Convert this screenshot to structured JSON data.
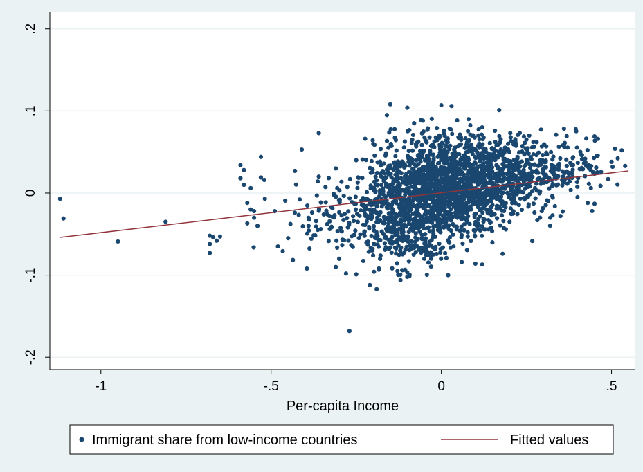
{
  "chart_data": {
    "type": "scatter",
    "xlabel": "Per-capita Income",
    "ylabel": "",
    "xlim": [
      -1.15,
      0.57
    ],
    "ylim": [
      -0.215,
      0.22
    ],
    "x_ticks": [
      -1,
      -0.5,
      0,
      0.5
    ],
    "x_tick_labels": [
      "-1",
      "-.5",
      "0",
      ".5"
    ],
    "y_ticks": [
      -0.2,
      -0.1,
      0,
      0.1,
      0.2
    ],
    "y_tick_labels": [
      "-.2",
      "-.1",
      "0",
      ".1",
      ".2"
    ],
    "grid": "horizontal",
    "legend_position": "bottom",
    "series": [
      {
        "name": "Immigrant share from low-income countries",
        "kind": "scatter",
        "color": "#1a476f",
        "points": [
          [
            -1.12,
            -0.007
          ],
          [
            -1.11,
            -0.031
          ],
          [
            -0.95,
            -0.059
          ],
          [
            -0.81,
            -0.035
          ],
          [
            -0.68,
            -0.052
          ],
          [
            -0.68,
            -0.062
          ],
          [
            -0.68,
            -0.073
          ],
          [
            -0.67,
            -0.054
          ],
          [
            -0.66,
            -0.058
          ],
          [
            -0.65,
            -0.053
          ],
          [
            -0.59,
            0.034
          ],
          [
            -0.58,
            0.028
          ],
          [
            -0.59,
            0.018
          ],
          [
            -0.58,
            0.01
          ],
          [
            -0.57,
            -0.012
          ],
          [
            -0.56,
            -0.02
          ],
          [
            -0.56,
            0.006
          ],
          [
            -0.53,
            0.019
          ],
          [
            -0.52,
            0.016
          ],
          [
            -0.53,
            0.044
          ],
          [
            -0.55,
            -0.022
          ],
          [
            -0.55,
            -0.03
          ],
          [
            -0.54,
            -0.04
          ],
          [
            -0.57,
            -0.037
          ],
          [
            -0.36,
            0.073
          ],
          [
            -0.41,
            0.053
          ],
          [
            -0.43,
            0.027
          ],
          [
            -0.36,
            0.02
          ],
          [
            -0.27,
            -0.168
          ],
          [
            -0.25,
            -0.099
          ],
          [
            -0.21,
            -0.112
          ],
          [
            -0.19,
            -0.117
          ],
          [
            -0.1,
            -0.102
          ],
          [
            -0.12,
            -0.106
          ],
          [
            -0.15,
            0.108
          ],
          [
            -0.1,
            0.104
          ],
          [
            0.0,
            0.107
          ],
          [
            0.03,
            0.106
          ],
          [
            0.17,
            0.101
          ],
          [
            0.02,
            -0.1
          ],
          [
            0.35,
            -0.028
          ],
          [
            0.4,
            -0.005
          ],
          [
            0.45,
            0.069
          ],
          [
            0.46,
            0.066
          ],
          [
            0.51,
            0.054
          ],
          [
            0.53,
            0.052
          ],
          [
            0.54,
            0.033
          ],
          [
            0.5,
            0.038
          ],
          [
            0.49,
            0.017
          ],
          [
            0.43,
            -0.012
          ],
          [
            0.45,
            -0.013
          ],
          [
            0.36,
            0.057
          ],
          [
            0.28,
            0.062
          ],
          [
            0.25,
            0.065
          ],
          [
            0.29,
            -0.03
          ],
          [
            0.32,
            -0.03
          ],
          [
            0.18,
            -0.074
          ],
          [
            0.1,
            -0.086
          ],
          [
            0.06,
            -0.084
          ],
          [
            0.12,
            -0.087
          ],
          [
            -0.05,
            -0.08
          ],
          [
            -0.03,
            -0.08
          ],
          [
            -0.3,
            -0.08
          ],
          [
            -0.31,
            -0.09
          ],
          [
            -0.28,
            -0.098
          ],
          [
            -0.39,
            -0.04
          ],
          [
            -0.45,
            -0.055
          ],
          [
            -0.48,
            -0.065
          ],
          [
            -0.31,
            0.03
          ],
          [
            -0.25,
            0.04
          ],
          [
            -0.2,
            0.06
          ],
          [
            -0.16,
            0.095
          ],
          [
            -0.08,
            0.085
          ],
          [
            0.08,
            0.09
          ],
          [
            0.12,
            0.08
          ],
          [
            0.22,
            0.06
          ],
          [
            -0.05,
            -0.07
          ],
          [
            0.15,
            -0.06
          ],
          [
            -0.18,
            -0.08
          ],
          [
            -0.22,
            -0.06
          ]
        ]
      },
      {
        "name": "Fitted values",
        "kind": "line",
        "color": "#90353b",
        "x": [
          -1.12,
          0.55
        ],
        "y": [
          -0.054,
          0.027
        ]
      }
    ]
  },
  "legend": {
    "items": [
      {
        "label": "Immigrant share from low-income countries",
        "marker": "dot"
      },
      {
        "label": "Fitted values",
        "marker": "line"
      }
    ]
  }
}
